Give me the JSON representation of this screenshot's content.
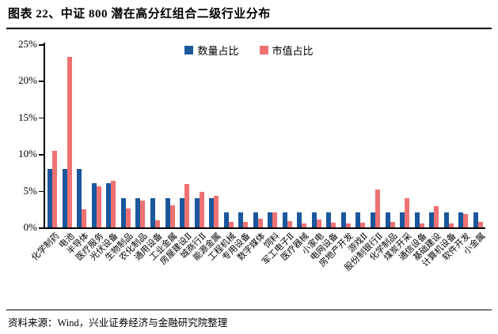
{
  "header": {
    "title": "图表 22、中证 800 潜在高分红组合二级行业分布"
  },
  "footer": {
    "source": "资料来源：Wind，兴业证券经济与金融研究院整理"
  },
  "colors": {
    "quantity_blue": "#1A579C",
    "marketcap_red": "#F07172",
    "axis": "#000000"
  },
  "chart_data": {
    "type": "bar",
    "title": "中证 800 潜在高分红组合二级行业分布",
    "xlabel": "",
    "ylabel": "",
    "ylim": [
      0,
      25
    ],
    "yticks": [
      "0%",
      "5%",
      "10%",
      "15%",
      "20%",
      "25%"
    ],
    "grid": false,
    "legend_position": "top-center",
    "categories": [
      "化学制药",
      "电池",
      "半导体",
      "医疗服务",
      "光伏设备",
      "生物制品",
      "农化制品",
      "通用设备",
      "工业金属",
      "房屋建设Ⅱ",
      "城商行Ⅱ",
      "能源金属",
      "工程机械",
      "专用设备",
      "数字媒体",
      "饲料",
      "军工电子Ⅱ",
      "医疗器械",
      "小家电",
      "电网设备",
      "房地产开发",
      "游戏Ⅱ",
      "股份制银行Ⅱ",
      "化学制品",
      "煤炭开采",
      "通信设备",
      "基础建设",
      "计算机设备",
      "软件开发",
      "小金属"
    ],
    "series": [
      {
        "name": "数量占比",
        "color": "#1A579C",
        "values": [
          8,
          8,
          8,
          6,
          6,
          4,
          4,
          4,
          4,
          4,
          4,
          4,
          2,
          2,
          2,
          2,
          2,
          2,
          2,
          2,
          2,
          2,
          2,
          2,
          2,
          2,
          2,
          2,
          2,
          2
        ]
      },
      {
        "name": "市值占比",
        "color": "#F07172",
        "values": [
          10.4,
          23.3,
          2.5,
          5.6,
          6.4,
          2.6,
          3.7,
          1.0,
          3.0,
          5.9,
          4.8,
          4.3,
          0.8,
          0.8,
          1.2,
          2.0,
          0.9,
          0.5,
          1.1,
          0.7,
          0.5,
          0.7,
          5.2,
          0.8,
          4.0,
          0.5,
          2.9,
          0.5,
          1.8,
          0.8
        ]
      }
    ]
  }
}
